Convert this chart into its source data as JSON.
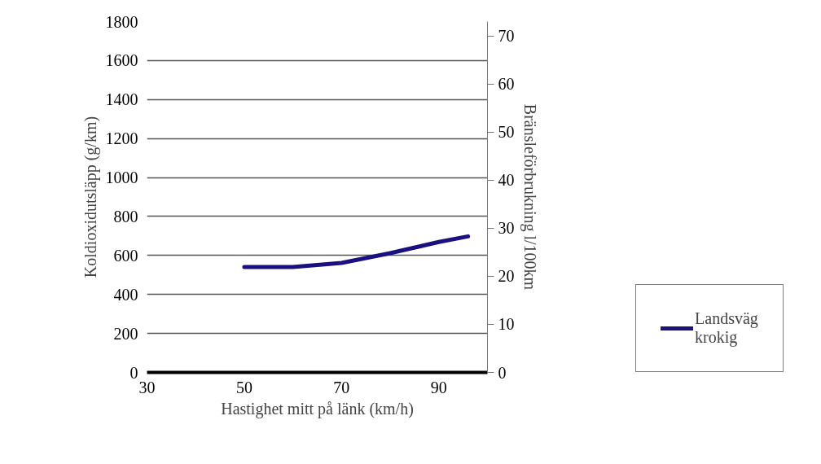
{
  "chart_data": {
    "type": "line",
    "xlabel": "Hastighet mitt på länk (km/h)",
    "ylabel": "Koldioxidutsläpp (g/km)",
    "y2label": "Bränsleförbrukning l/100km",
    "x": [
      50,
      60,
      70,
      80,
      90,
      96
    ],
    "series": [
      {
        "name": "Landsväg krokig",
        "color": "#1a1080",
        "values": [
          541,
          541,
          562,
          612,
          669,
          698
        ]
      }
    ],
    "xlim": [
      30,
      100
    ],
    "xticks": [
      30,
      50,
      70,
      90
    ],
    "ylim": [
      0,
      1800
    ],
    "yticks": [
      0,
      200,
      400,
      600,
      800,
      1000,
      1200,
      1400,
      1600,
      1800
    ],
    "y2lim": [
      0,
      73
    ],
    "y2ticks": [
      0,
      10,
      20,
      30,
      40,
      50,
      60,
      70
    ],
    "grid": "y",
    "legend": "right",
    "marker": "none",
    "line_style": "solid"
  }
}
